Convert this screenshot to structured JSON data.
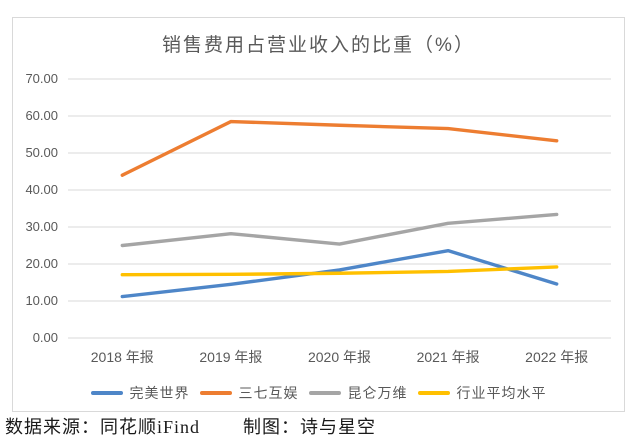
{
  "chart_data": {
    "type": "line",
    "title": "销售费用占营业收入的比重（%）",
    "categories": [
      "2018 年报",
      "2019 年报",
      "2020 年报",
      "2021 年报",
      "2022 年报"
    ],
    "series": [
      {
        "id": "perfect-world",
        "name": "完美世界",
        "color": "#4e86c8",
        "values": [
          11.2,
          14.5,
          18.4,
          23.6,
          14.6
        ]
      },
      {
        "id": "37-interactive",
        "name": "三七互娱",
        "color": "#ed7d31",
        "values": [
          44.0,
          58.5,
          57.5,
          56.6,
          53.3
        ]
      },
      {
        "id": "kunlun-tech",
        "name": "昆仑万维",
        "color": "#a5a5a5",
        "values": [
          25.0,
          28.2,
          25.4,
          31.0,
          33.4
        ]
      },
      {
        "id": "industry-average",
        "name": "行业平均水平",
        "color": "#ffc000",
        "values": [
          17.1,
          17.2,
          17.5,
          18.0,
          19.2
        ]
      }
    ],
    "ylim": [
      0,
      70
    ],
    "ytick_step": 10,
    "ytick_labels": [
      "0.00",
      "10.00",
      "20.00",
      "30.00",
      "40.00",
      "50.00",
      "60.00",
      "70.00"
    ],
    "grid": true,
    "legend_position": "bottom",
    "colors": {
      "axis_text": "#595959",
      "gridline": "#d9d9d9",
      "border": "#d9d9d9",
      "title_text": "#595959",
      "caption_text": "#1a1a1a"
    }
  },
  "footer": {
    "source": "数据来源：同花顺iFind",
    "credit": "制图：诗与星空"
  }
}
